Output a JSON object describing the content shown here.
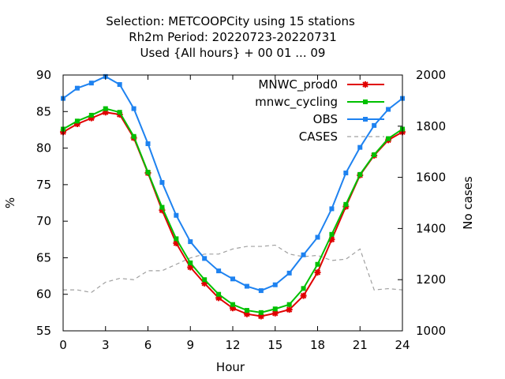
{
  "chart_data": {
    "type": "line",
    "title_lines": [
      "Selection: METCOOPCity using    15 stations",
      "Rh2m   Period: 20220723-20220731",
      "Used {All hours} + 00 01 ... 09"
    ],
    "xlabel": "Hour",
    "ylabel": "%",
    "y2label": "No cases",
    "xlim": [
      0,
      24
    ],
    "ylim": [
      55,
      90
    ],
    "y2lim": [
      1000,
      2000
    ],
    "xticks": [
      0,
      3,
      6,
      9,
      12,
      15,
      18,
      21,
      24
    ],
    "yticks": [
      55,
      60,
      65,
      70,
      75,
      80,
      85,
      90
    ],
    "y2ticks": [
      1000,
      1200,
      1400,
      1600,
      1800,
      2000
    ],
    "grid": false,
    "legend_position": "top-right",
    "x": [
      0,
      1,
      2,
      3,
      4,
      5,
      6,
      7,
      8,
      9,
      10,
      11,
      12,
      13,
      14,
      15,
      16,
      17,
      18,
      19,
      20,
      21,
      22,
      23,
      24
    ],
    "series": [
      {
        "name": "MNWC_prod0",
        "color": "#e00000",
        "marker": "star",
        "axis": "y",
        "values": [
          82.2,
          83.3,
          84.1,
          84.9,
          84.6,
          81.4,
          76.6,
          71.5,
          67.0,
          63.7,
          61.5,
          59.5,
          58.1,
          57.3,
          57.0,
          57.4,
          57.9,
          59.8,
          63.0,
          67.5,
          72.0,
          76.3,
          79.0,
          81.1,
          82.2
        ]
      },
      {
        "name": "mnwc_cycling",
        "color": "#00c000",
        "marker": "square",
        "axis": "y",
        "values": [
          82.6,
          83.7,
          84.5,
          85.4,
          84.9,
          81.6,
          76.7,
          71.9,
          67.6,
          64.3,
          62.0,
          60.0,
          58.6,
          57.8,
          57.5,
          58.0,
          58.6,
          60.8,
          64.1,
          68.2,
          72.3,
          76.4,
          79.1,
          81.3,
          82.6
        ]
      },
      {
        "name": "OBS",
        "color": "#1e82f0",
        "marker": "square",
        "axis": "y",
        "values": [
          86.8,
          88.2,
          88.9,
          89.8,
          88.7,
          85.4,
          80.6,
          75.3,
          70.8,
          67.2,
          64.9,
          63.2,
          62.1,
          61.1,
          60.5,
          61.3,
          62.9,
          65.4,
          67.8,
          71.7,
          76.6,
          80.1,
          83.1,
          85.3,
          86.8
        ]
      },
      {
        "name": "CASES",
        "color": "#a0a0a0",
        "marker": "none",
        "dashed": true,
        "axis": "y2",
        "values": [
          1160,
          1160,
          1150,
          1190,
          1205,
          1200,
          1235,
          1235,
          1260,
          1285,
          1300,
          1300,
          1320,
          1330,
          1330,
          1335,
          1300,
          1290,
          1295,
          1275,
          1280,
          1320,
          1160,
          1165,
          1160
        ]
      }
    ]
  }
}
